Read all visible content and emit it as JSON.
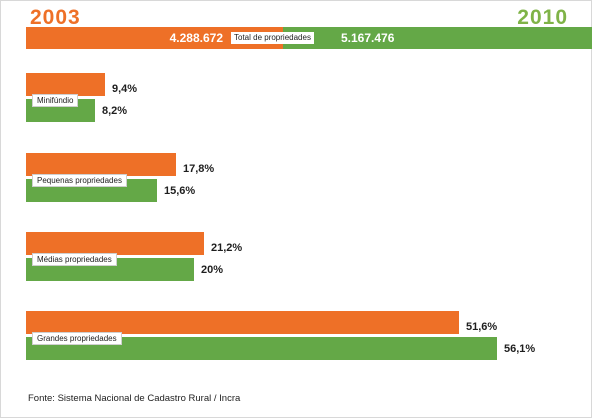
{
  "years": {
    "left": "2003",
    "right": "2010"
  },
  "colors": {
    "orange": "#ee7027",
    "green": "#64a847"
  },
  "chart_data": {
    "type": "bar",
    "title": "",
    "series_names": [
      "2003",
      "2010"
    ],
    "total": {
      "label": "Total de propriedades",
      "values": [
        4288672,
        5167476
      ],
      "display": [
        "4.288.672",
        "5.167.476"
      ]
    },
    "categories": [
      "Minifúndio",
      "Pequenas propriedades",
      "Médias propriedades",
      "Grandes propriedades"
    ],
    "series": [
      {
        "name": "2003",
        "values": [
          9.4,
          17.8,
          21.2,
          51.6
        ],
        "labels": [
          "9,4%",
          "17,8%",
          "21,2%",
          "51,6%"
        ]
      },
      {
        "name": "2010",
        "values": [
          8.2,
          15.6,
          20,
          56.1
        ],
        "labels": [
          "8,2%",
          "15,6%",
          "20%",
          "56,1%"
        ]
      }
    ],
    "unit": "%"
  },
  "source": "Fonte: Sistema Nacional de Cadastro Rural / Incra"
}
